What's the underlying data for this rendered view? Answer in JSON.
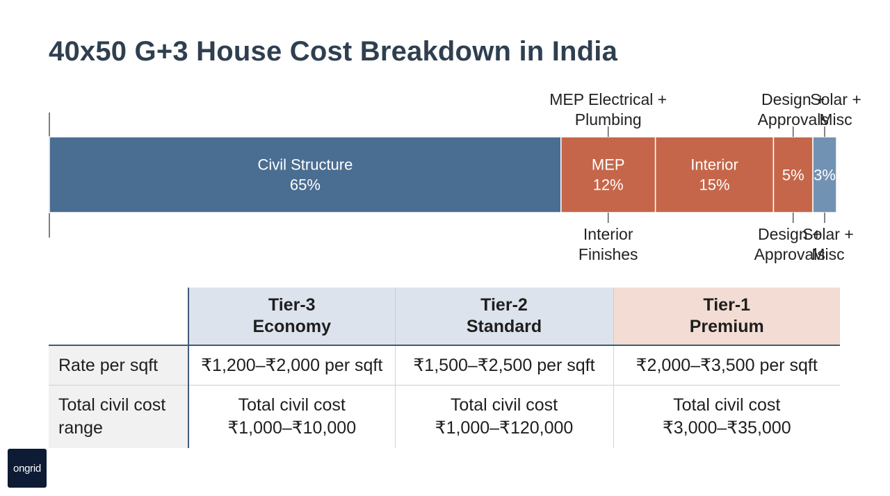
{
  "title": "40x50 G+3 House Cost Breakdown in India",
  "colors": {
    "civil": "#4a6d92",
    "mep": "#c5664a",
    "interior": "#c5664a",
    "design": "#c5664a",
    "solar": "#7292b3"
  },
  "chart_data": {
    "type": "bar",
    "orientation": "horizontal-stacked",
    "title": "40x50 G+3 House Cost Breakdown in India",
    "unit": "%",
    "xlim": [
      0,
      100
    ],
    "segments": [
      {
        "key": "civil",
        "label": "Civil Structure",
        "value": 65,
        "value_label": "65%"
      },
      {
        "key": "mep",
        "label": "MEP",
        "value": 12,
        "value_label": "12%"
      },
      {
        "key": "interior",
        "label": "Interior",
        "value": 15,
        "value_label": "15%"
      },
      {
        "key": "design",
        "label": "",
        "value": 5,
        "value_label": "5%"
      },
      {
        "key": "solar",
        "label": "",
        "value": 3,
        "value_label": "3%"
      }
    ],
    "annotations_top": [
      {
        "segment": "mep",
        "lines": [
          "MEP Electrical +",
          "Plumbing"
        ]
      },
      {
        "segment": "design",
        "lines": [
          "Design +",
          "Approvals"
        ]
      },
      {
        "segment": "solar",
        "lines": [
          "Solar +",
          "Misc"
        ]
      }
    ],
    "annotations_bottom": [
      {
        "segment": "mep",
        "lines": [
          "Interior",
          "Finishes"
        ]
      },
      {
        "segment": "design",
        "lines": [
          "Design +",
          "Approvals"
        ]
      },
      {
        "segment": "solar",
        "lines": [
          "Solar +",
          "Misc"
        ]
      }
    ]
  },
  "table": {
    "headers": [
      {
        "lines": [
          "Tier-3",
          "Economy"
        ]
      },
      {
        "lines": [
          "Tier-2",
          "Standard"
        ]
      },
      {
        "lines": [
          "Tier-1",
          "Premium"
        ]
      }
    ],
    "rows": [
      {
        "label": [
          "Rate per sqft"
        ],
        "values": [
          [
            "₹1,200–₹2,000 per sqft"
          ],
          [
            "₹1,500–₹2,500 per sqft"
          ],
          [
            "₹2,000–₹3,500 per sqft"
          ]
        ]
      },
      {
        "label": [
          "Total civil cost",
          "range"
        ],
        "values": [
          [
            "Total civil cost",
            "₹1,000–₹10,000"
          ],
          [
            "Total civil cost",
            "₹1,000–₹120,000"
          ],
          [
            "Total civil cost",
            "₹3,000–₹35,000"
          ]
        ]
      }
    ]
  },
  "logo": {
    "text": "ongrid"
  }
}
